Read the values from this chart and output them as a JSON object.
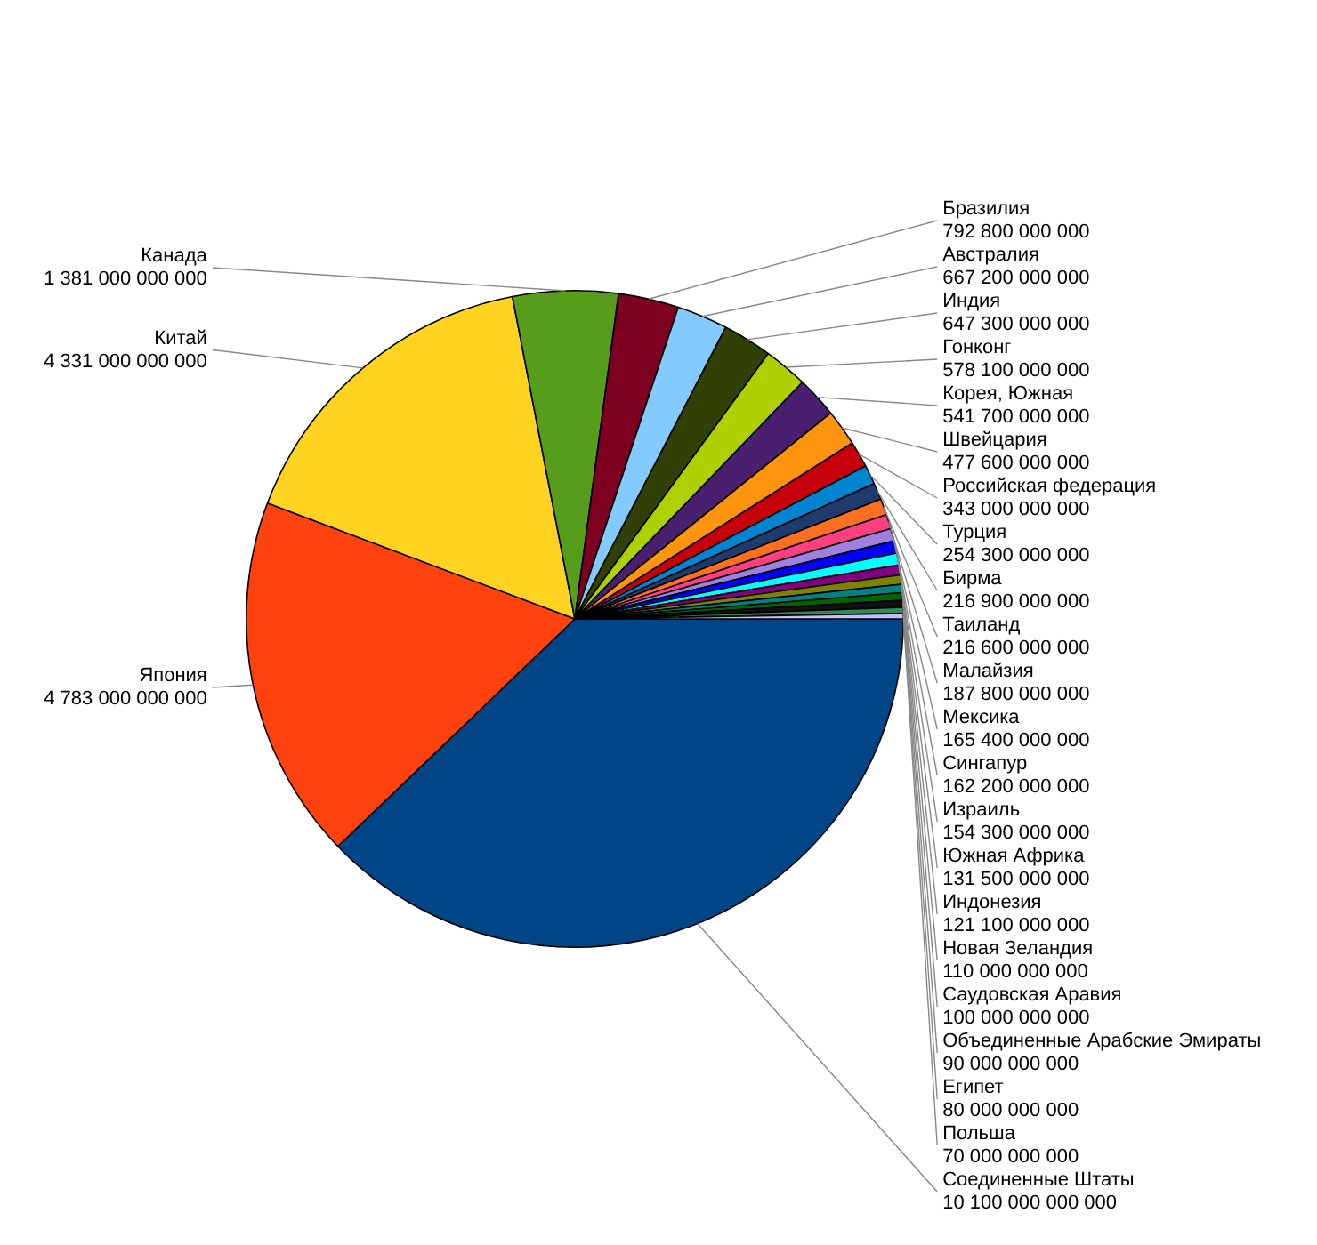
{
  "chart_data": {
    "type": "pie",
    "categories": [
      "Соединенные Штаты",
      "Япония",
      "Китай",
      "Канада",
      "Бразилия",
      "Австралия",
      "Индия",
      "Гонконг",
      "Корея, Южная",
      "Швейцария",
      "Российская федерация",
      "Турция",
      "Бирма",
      "Таиланд",
      "Малайзия",
      "Мексика",
      "Сингапур",
      "Израиль",
      "Южная Африка",
      "Индонезия",
      "Новая Зеландия",
      "Саудовская Аравия",
      "Объединенные Арабские Эмираты",
      "Египет",
      "Польша"
    ],
    "values": [
      10100000000000,
      4783000000000,
      4331000000000,
      1381000000000,
      792800000000,
      667200000000,
      647300000000,
      578100000000,
      541700000000,
      477600000000,
      343000000000,
      254300000000,
      216900000000,
      216600000000,
      187800000000,
      165400000000,
      162200000000,
      154300000000,
      131500000000,
      121100000000,
      110000000000,
      100000000000,
      90000000000,
      80000000000,
      70000000000
    ],
    "value_labels": [
      "10 100 000 000 000",
      "4 783 000 000 000",
      "4 331 000 000 000",
      "1 381 000 000 000",
      "792 800 000 000",
      "667 200 000 000",
      "647 300 000 000",
      "578 100 000 000",
      "541 700 000 000",
      "477 600 000 000",
      "343 000 000 000",
      "254 300 000 000",
      "216 900 000 000",
      "216 600 000 000",
      "187 800 000 000",
      "165 400 000 000",
      "162 200 000 000",
      "154 300 000 000",
      "131 500 000 000",
      "121 100 000 000",
      "110 000 000 000",
      "100 000 000 000",
      "90 000 000 000",
      "80 000 000 000",
      "70 000 000 000"
    ],
    "colors": [
      "#004586",
      "#ff420e",
      "#ffd320",
      "#579d1c",
      "#7e0021",
      "#83caff",
      "#314004",
      "#aecf00",
      "#4b1f6f",
      "#ff950e",
      "#c5000b",
      "#0084d1",
      "#1f3a6e",
      "#ff6f20",
      "#ff3f7f",
      "#9f7fdf",
      "#0000ff",
      "#00ffff",
      "#800080",
      "#808000",
      "#008080",
      "#006400",
      "#111111",
      "#2e8b57",
      "#c0c0ff"
    ]
  }
}
